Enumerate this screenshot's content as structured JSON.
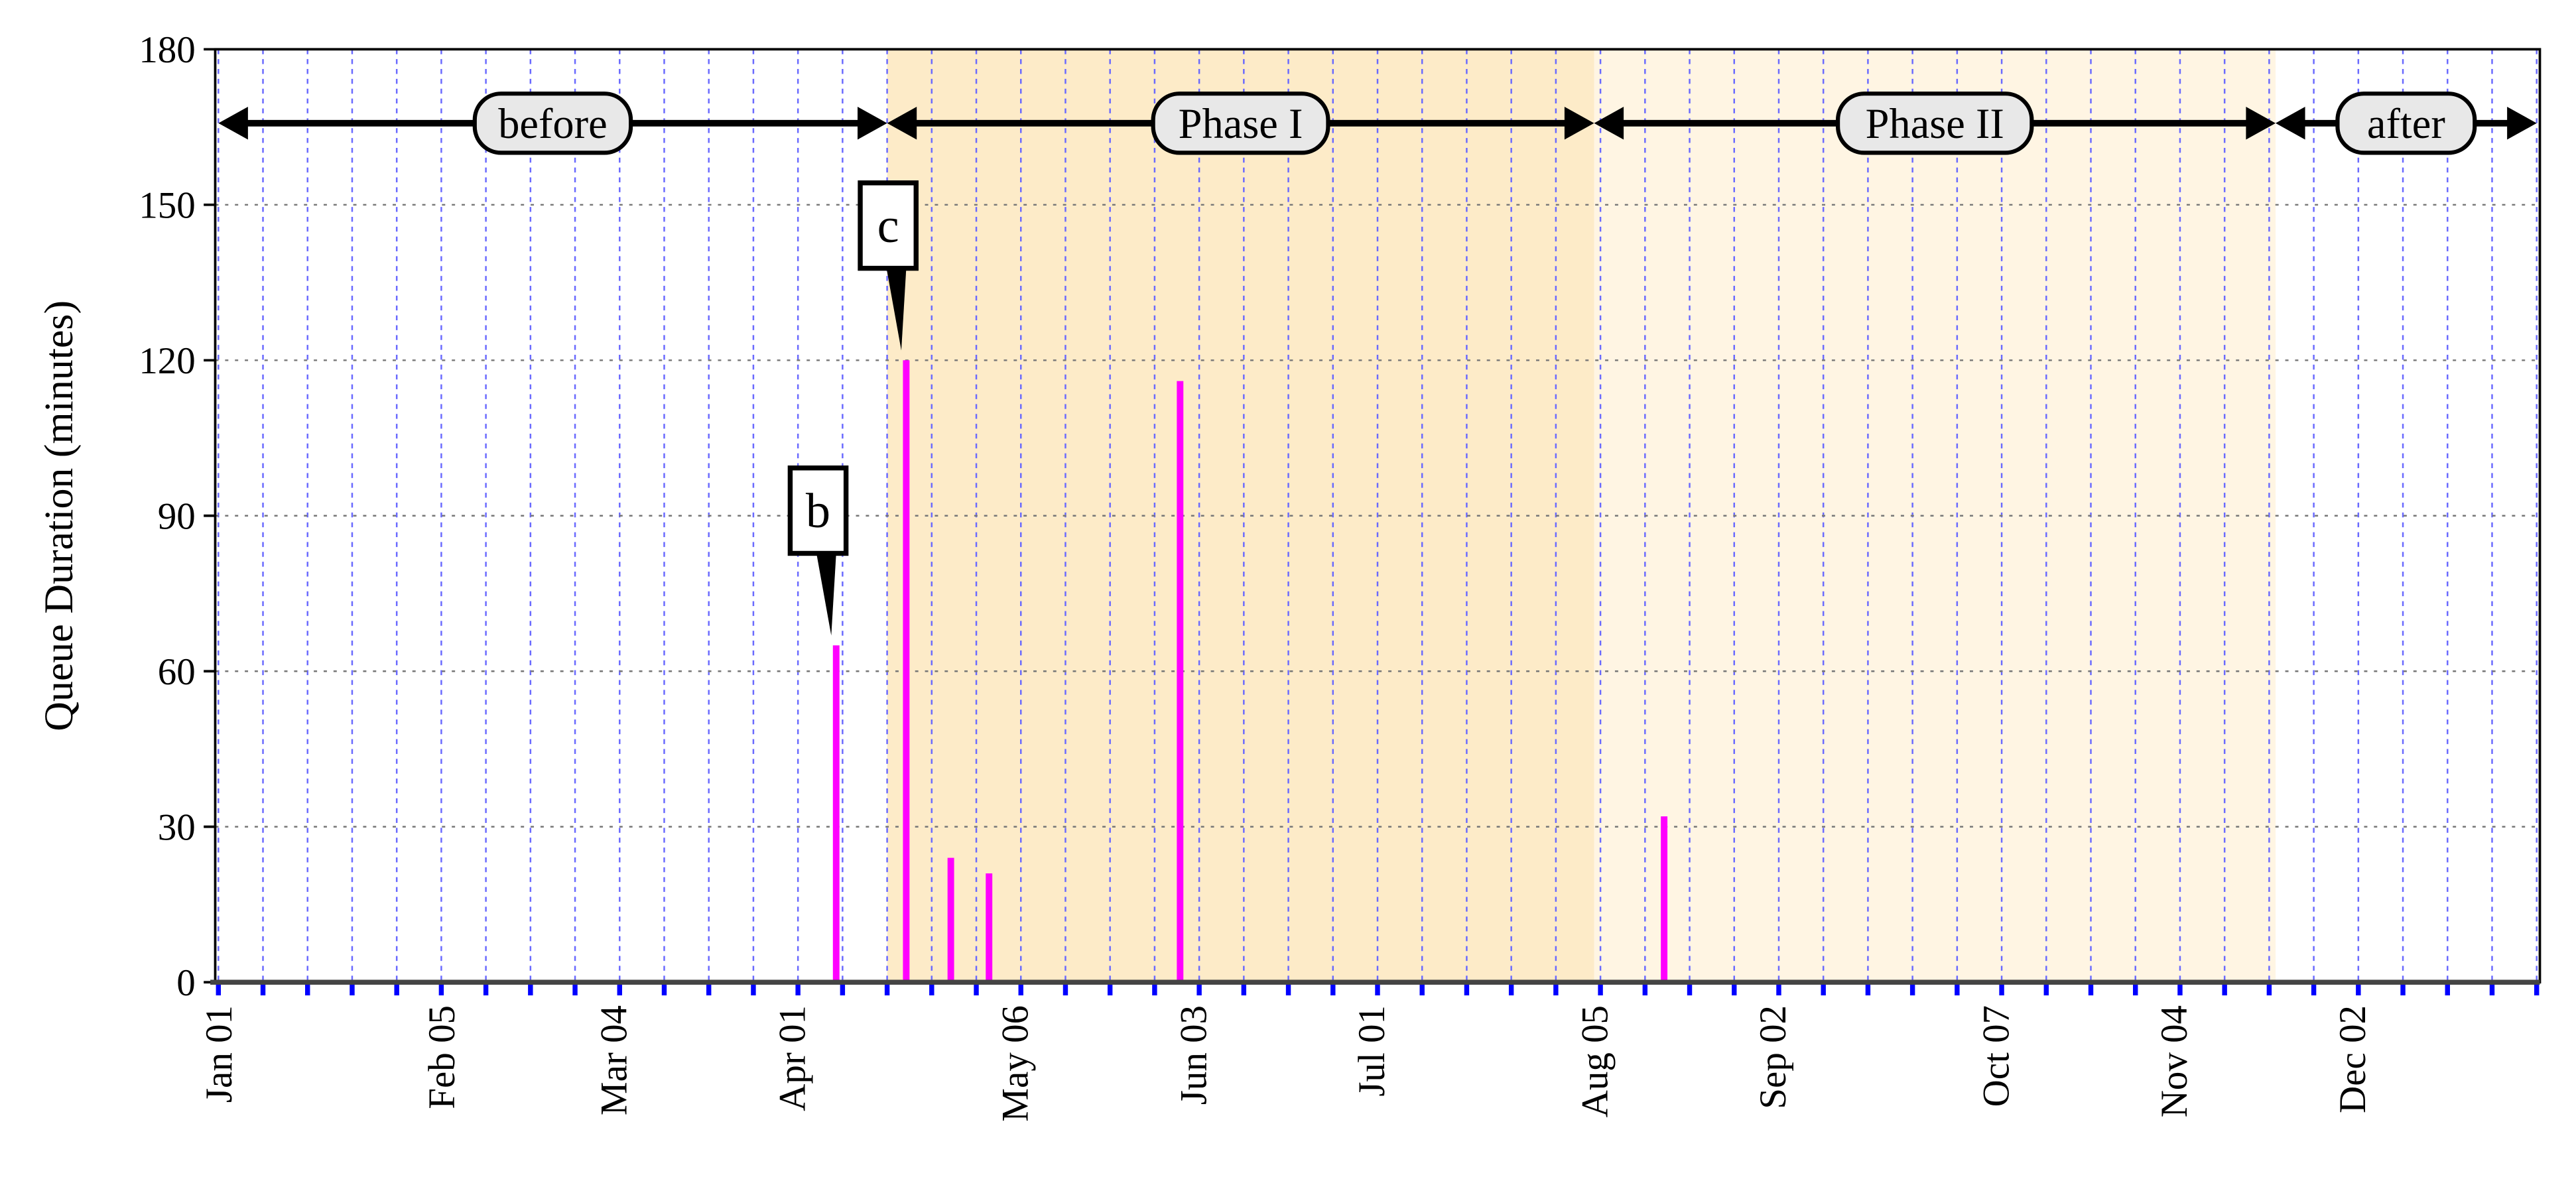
{
  "chart_data": {
    "type": "bar",
    "title": "",
    "xlabel": "",
    "ylabel": "Queue Duration (minutes)",
    "xlim": [
      "2018-01-01",
      "2018-12-31"
    ],
    "ylim": [
      0,
      180
    ],
    "yticks": [
      0,
      30,
      60,
      90,
      120,
      150,
      180
    ],
    "xtick_interval": "weekly (Mondays)",
    "xtick_labels": [
      {
        "date": "2018-01-01",
        "label": "Jan 01"
      },
      {
        "date": "2018-02-05",
        "label": "Feb 05"
      },
      {
        "date": "2018-03-04",
        "label": "Mar 04"
      },
      {
        "date": "2018-04-01",
        "label": "Apr 01"
      },
      {
        "date": "2018-05-06",
        "label": "May 06"
      },
      {
        "date": "2018-06-03",
        "label": "Jun 03"
      },
      {
        "date": "2018-07-01",
        "label": "Jul 01"
      },
      {
        "date": "2018-08-05",
        "label": "Aug 05"
      },
      {
        "date": "2018-09-02",
        "label": "Sep 02"
      },
      {
        "date": "2018-10-07",
        "label": "Oct 07"
      },
      {
        "date": "2018-11-04",
        "label": "Nov 04"
      },
      {
        "date": "2018-12-02",
        "label": "Dec 02"
      }
    ],
    "grid": true,
    "bar_color": "#ff00ff",
    "bars": [
      {
        "date": "2018-04-08",
        "value": 65
      },
      {
        "date": "2018-04-19",
        "value": 120
      },
      {
        "date": "2018-04-26",
        "value": 24
      },
      {
        "date": "2018-05-02",
        "value": 21
      },
      {
        "date": "2018-06-01",
        "value": 116
      },
      {
        "date": "2018-08-16",
        "value": 32
      }
    ],
    "annotations": [
      {
        "label": "b",
        "date": "2018-04-08",
        "value": 65
      },
      {
        "label": "c",
        "date": "2018-04-19",
        "value": 120
      }
    ],
    "phases": [
      {
        "label": "before",
        "start": "2018-01-01",
        "end": "2018-04-16",
        "color": "#ffffff"
      },
      {
        "label": "Phase I",
        "start": "2018-04-16",
        "end": "2018-08-05",
        "color": "#fdebc8"
      },
      {
        "label": "Phase II",
        "start": "2018-08-05",
        "end": "2018-11-20",
        "color": "#fff5e3"
      },
      {
        "label": "after",
        "start": "2018-11-20",
        "end": "2018-12-31",
        "color": "#ffffff"
      }
    ]
  }
}
